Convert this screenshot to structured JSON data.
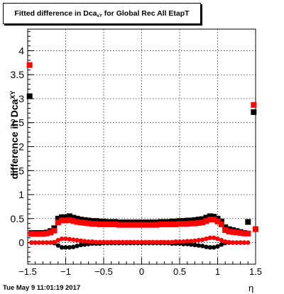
{
  "chart_data": {
    "type": "scatter",
    "title_main": "Fitted difference in Dca",
    "title_sub": "xY",
    "title_tail": " for Global Rec All EtapT",
    "ylabel_main": "difference in Dca",
    "ylabel_sub": "XY",
    "xlabel": "η",
    "datestamp": "Tue May  9 11:01:19 2017",
    "xlim": [
      -1.5,
      1.5
    ],
    "ylim": [
      -0.45,
      4.45
    ],
    "grid": true,
    "x_ticks": [
      -1.5,
      -1,
      -0.5,
      0,
      0.5,
      1,
      1.5
    ],
    "x_tick_labels": [
      "−1.5",
      "−1",
      "−0.5",
      "0",
      "0.5",
      "1",
      "1.5"
    ],
    "y_ticks": [
      0,
      0.5,
      1,
      1.5,
      2,
      2.5,
      3,
      3.5,
      4
    ],
    "y_tick_labels": [
      "0",
      "0.5",
      "1",
      "1.5",
      "2",
      "2.5",
      "3",
      "3.5",
      "4"
    ],
    "series": [
      {
        "color": "#000000",
        "marker": "square",
        "points": [
          [
            -1.475,
            3.05
          ],
          [
            -1.45,
            0.2
          ],
          [
            -1.4,
            0.2
          ],
          [
            -1.35,
            0.2
          ],
          [
            -1.3,
            0.2
          ],
          [
            -1.25,
            0.21
          ],
          [
            -1.2,
            0.24
          ],
          [
            -1.15,
            0.3
          ],
          [
            -1.1,
            0.5
          ],
          [
            -1.05,
            0.53
          ],
          [
            -1.0,
            0.53
          ],
          [
            -0.95,
            0.55
          ],
          [
            -0.9,
            0.52
          ],
          [
            -0.85,
            0.5
          ],
          [
            -0.8,
            0.48
          ],
          [
            -0.75,
            0.47
          ],
          [
            -0.7,
            0.46
          ],
          [
            -0.65,
            0.45
          ],
          [
            -0.6,
            0.45
          ],
          [
            -0.55,
            0.44
          ],
          [
            -0.5,
            0.44
          ],
          [
            -0.45,
            0.43
          ],
          [
            -0.4,
            0.43
          ],
          [
            -0.35,
            0.43
          ],
          [
            -0.3,
            0.42
          ],
          [
            -0.25,
            0.42
          ],
          [
            -0.2,
            0.42
          ],
          [
            -0.15,
            0.42
          ],
          [
            -0.1,
            0.42
          ],
          [
            -0.05,
            0.42
          ],
          [
            0.0,
            0.42
          ],
          [
            0.05,
            0.42
          ],
          [
            0.1,
            0.42
          ],
          [
            0.15,
            0.42
          ],
          [
            0.2,
            0.42
          ],
          [
            0.25,
            0.43
          ],
          [
            0.3,
            0.43
          ],
          [
            0.35,
            0.43
          ],
          [
            0.4,
            0.44
          ],
          [
            0.45,
            0.44
          ],
          [
            0.5,
            0.45
          ],
          [
            0.55,
            0.45
          ],
          [
            0.6,
            0.46
          ],
          [
            0.65,
            0.46
          ],
          [
            0.7,
            0.47
          ],
          [
            0.75,
            0.48
          ],
          [
            0.8,
            0.49
          ],
          [
            0.85,
            0.52
          ],
          [
            0.9,
            0.55
          ],
          [
            0.95,
            0.54
          ],
          [
            1.0,
            0.5
          ],
          [
            1.05,
            0.44
          ],
          [
            1.1,
            0.32
          ],
          [
            1.15,
            0.28
          ],
          [
            1.2,
            0.26
          ],
          [
            1.25,
            0.24
          ],
          [
            1.3,
            0.22
          ],
          [
            1.35,
            0.2
          ],
          [
            1.4,
            0.43
          ],
          [
            1.475,
            2.72
          ]
        ]
      },
      {
        "color": "#000000",
        "marker": "circle",
        "points": [
          [
            -1.45,
            0.0
          ],
          [
            -1.4,
            0.0
          ],
          [
            -1.35,
            0.0
          ],
          [
            -1.3,
            0.0
          ],
          [
            -1.25,
            0.0
          ],
          [
            -1.2,
            0.0
          ],
          [
            -1.15,
            -0.01
          ],
          [
            -1.1,
            -0.06
          ],
          [
            -1.05,
            -0.1
          ],
          [
            -1.0,
            -0.1
          ],
          [
            -0.95,
            -0.1
          ],
          [
            -0.9,
            -0.09
          ],
          [
            -0.85,
            -0.07
          ],
          [
            -0.8,
            -0.05
          ],
          [
            -0.75,
            -0.04
          ],
          [
            -0.7,
            -0.03
          ],
          [
            -0.65,
            -0.02
          ],
          [
            -0.6,
            -0.02
          ],
          [
            -0.55,
            -0.02
          ],
          [
            -0.5,
            -0.01
          ],
          [
            -0.45,
            -0.01
          ],
          [
            -0.4,
            -0.01
          ],
          [
            -0.35,
            -0.01
          ],
          [
            -0.3,
            -0.01
          ],
          [
            -0.25,
            -0.01
          ],
          [
            -0.2,
            -0.01
          ],
          [
            -0.15,
            -0.01
          ],
          [
            -0.1,
            -0.01
          ],
          [
            -0.05,
            -0.01
          ],
          [
            0.0,
            -0.01
          ],
          [
            0.05,
            -0.01
          ],
          [
            0.1,
            -0.01
          ],
          [
            0.15,
            -0.01
          ],
          [
            0.2,
            -0.01
          ],
          [
            0.25,
            -0.01
          ],
          [
            0.3,
            -0.01
          ],
          [
            0.35,
            -0.01
          ],
          [
            0.4,
            -0.02
          ],
          [
            0.45,
            -0.02
          ],
          [
            0.5,
            -0.02
          ],
          [
            0.55,
            -0.03
          ],
          [
            0.6,
            -0.03
          ],
          [
            0.65,
            -0.04
          ],
          [
            0.7,
            -0.05
          ],
          [
            0.75,
            -0.06
          ],
          [
            0.8,
            -0.07
          ],
          [
            0.85,
            -0.09
          ],
          [
            0.9,
            -0.1
          ],
          [
            0.95,
            -0.1
          ],
          [
            1.0,
            -0.08
          ],
          [
            1.05,
            -0.04
          ],
          [
            1.1,
            -0.01
          ],
          [
            1.15,
            0.0
          ],
          [
            1.2,
            0.0
          ],
          [
            1.25,
            0.0
          ],
          [
            1.3,
            0.0
          ],
          [
            1.35,
            0.0
          ]
        ]
      },
      {
        "color": "#ff0000",
        "marker": "square",
        "points": [
          [
            -1.475,
            3.7
          ],
          [
            -1.45,
            0.18
          ],
          [
            -1.4,
            0.18
          ],
          [
            -1.35,
            0.18
          ],
          [
            -1.3,
            0.18
          ],
          [
            -1.25,
            0.19
          ],
          [
            -1.2,
            0.21
          ],
          [
            -1.15,
            0.25
          ],
          [
            -1.1,
            0.42
          ],
          [
            -1.05,
            0.46
          ],
          [
            -1.0,
            0.46
          ],
          [
            -0.95,
            0.47
          ],
          [
            -0.9,
            0.45
          ],
          [
            -0.85,
            0.43
          ],
          [
            -0.8,
            0.42
          ],
          [
            -0.75,
            0.41
          ],
          [
            -0.7,
            0.4
          ],
          [
            -0.65,
            0.39
          ],
          [
            -0.6,
            0.39
          ],
          [
            -0.55,
            0.38
          ],
          [
            -0.5,
            0.38
          ],
          [
            -0.45,
            0.38
          ],
          [
            -0.4,
            0.38
          ],
          [
            -0.35,
            0.38
          ],
          [
            -0.3,
            0.37
          ],
          [
            -0.25,
            0.37
          ],
          [
            -0.2,
            0.37
          ],
          [
            -0.15,
            0.37
          ],
          [
            -0.1,
            0.37
          ],
          [
            -0.05,
            0.37
          ],
          [
            0.0,
            0.37
          ],
          [
            0.05,
            0.37
          ],
          [
            0.1,
            0.37
          ],
          [
            0.15,
            0.37
          ],
          [
            0.2,
            0.37
          ],
          [
            0.25,
            0.38
          ],
          [
            0.3,
            0.38
          ],
          [
            0.35,
            0.38
          ],
          [
            0.4,
            0.38
          ],
          [
            0.45,
            0.38
          ],
          [
            0.5,
            0.39
          ],
          [
            0.55,
            0.39
          ],
          [
            0.6,
            0.39
          ],
          [
            0.65,
            0.4
          ],
          [
            0.7,
            0.4
          ],
          [
            0.75,
            0.41
          ],
          [
            0.8,
            0.42
          ],
          [
            0.85,
            0.45
          ],
          [
            0.9,
            0.48
          ],
          [
            0.95,
            0.48
          ],
          [
            1.0,
            0.44
          ],
          [
            1.05,
            0.38
          ],
          [
            1.1,
            0.26
          ],
          [
            1.15,
            0.23
          ],
          [
            1.2,
            0.22
          ],
          [
            1.25,
            0.21
          ],
          [
            1.3,
            0.2
          ],
          [
            1.35,
            0.19
          ],
          [
            1.4,
            0.19
          ],
          [
            1.475,
            2.87
          ],
          [
            1.5,
            0.28
          ]
        ]
      },
      {
        "color": "#ff0000",
        "marker": "circle",
        "points": [
          [
            -1.45,
            0.0
          ],
          [
            -1.4,
            0.0
          ],
          [
            -1.35,
            0.0
          ],
          [
            -1.3,
            0.0
          ],
          [
            -1.25,
            0.0
          ],
          [
            -1.2,
            0.0
          ],
          [
            -1.15,
            0.01
          ],
          [
            -1.1,
            0.05
          ],
          [
            -1.05,
            0.08
          ],
          [
            -1.0,
            0.08
          ],
          [
            -0.95,
            0.07
          ],
          [
            -0.9,
            0.06
          ],
          [
            -0.85,
            0.05
          ],
          [
            -0.8,
            0.04
          ],
          [
            -0.75,
            0.03
          ],
          [
            -0.7,
            0.02
          ],
          [
            -0.65,
            0.02
          ],
          [
            -0.6,
            0.01
          ],
          [
            -0.55,
            0.01
          ],
          [
            -0.5,
            0.01
          ],
          [
            -0.45,
            0.01
          ],
          [
            -0.4,
            0.01
          ],
          [
            -0.35,
            0.01
          ],
          [
            -0.3,
            0.01
          ],
          [
            -0.25,
            0.01
          ],
          [
            -0.2,
            0.01
          ],
          [
            -0.15,
            0.01
          ],
          [
            -0.1,
            0.01
          ],
          [
            -0.05,
            0.01
          ],
          [
            0.0,
            0.01
          ],
          [
            0.05,
            0.01
          ],
          [
            0.1,
            0.01
          ],
          [
            0.15,
            0.01
          ],
          [
            0.2,
            0.01
          ],
          [
            0.25,
            0.01
          ],
          [
            0.3,
            0.01
          ],
          [
            0.35,
            0.01
          ],
          [
            0.4,
            0.01
          ],
          [
            0.45,
            0.02
          ],
          [
            0.5,
            0.02
          ],
          [
            0.55,
            0.02
          ],
          [
            0.6,
            0.03
          ],
          [
            0.65,
            0.03
          ],
          [
            0.7,
            0.04
          ],
          [
            0.75,
            0.05
          ],
          [
            0.8,
            0.06
          ],
          [
            0.85,
            0.08
          ],
          [
            0.9,
            0.1
          ],
          [
            0.95,
            0.1
          ],
          [
            1.0,
            0.08
          ],
          [
            1.05,
            0.05
          ],
          [
            1.1,
            0.02
          ],
          [
            1.15,
            0.01
          ],
          [
            1.2,
            0.0
          ],
          [
            1.25,
            0.0
          ],
          [
            1.3,
            0.0
          ],
          [
            1.35,
            0.0
          ],
          [
            1.4,
            0.0
          ]
        ]
      }
    ]
  }
}
